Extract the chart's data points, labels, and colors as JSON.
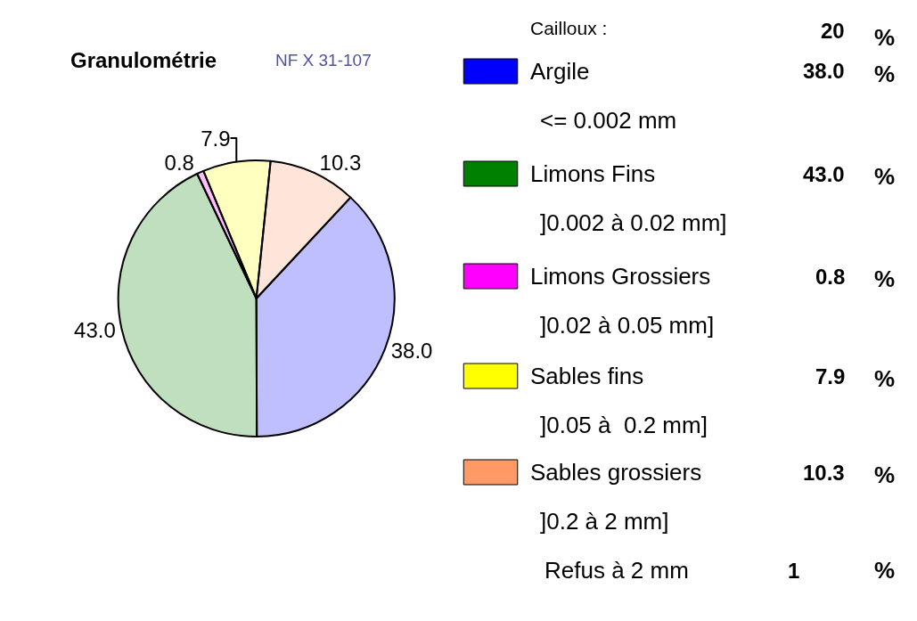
{
  "chart_data": {
    "type": "pie",
    "title": "Granulométrie",
    "subtitle": "NF X 31-107",
    "categories": [
      "Argile",
      "Limons Fins",
      "Limons Grossiers",
      "Sables fins",
      "Sables grossiers"
    ],
    "values": [
      38.0,
      43.0,
      0.8,
      7.9,
      10.3
    ],
    "value_labels": [
      "38.0",
      "43.0",
      "0.8",
      "7.9",
      "10.3"
    ],
    "colors": [
      "#0000ff",
      "#008000",
      "#ff00ff",
      "#ffff00",
      "#ff9966"
    ],
    "legend": "right",
    "annotations": [
      "Cailloux :",
      "20",
      "%",
      "<= 0.002 mm",
      "]0.002 à 0.02 mm]",
      "]0.02 à 0.05 mm]",
      "]0.05 à  0.2 mm]",
      "]0.2 à 2 mm]",
      "Refus à 2 mm",
      "1"
    ]
  }
}
